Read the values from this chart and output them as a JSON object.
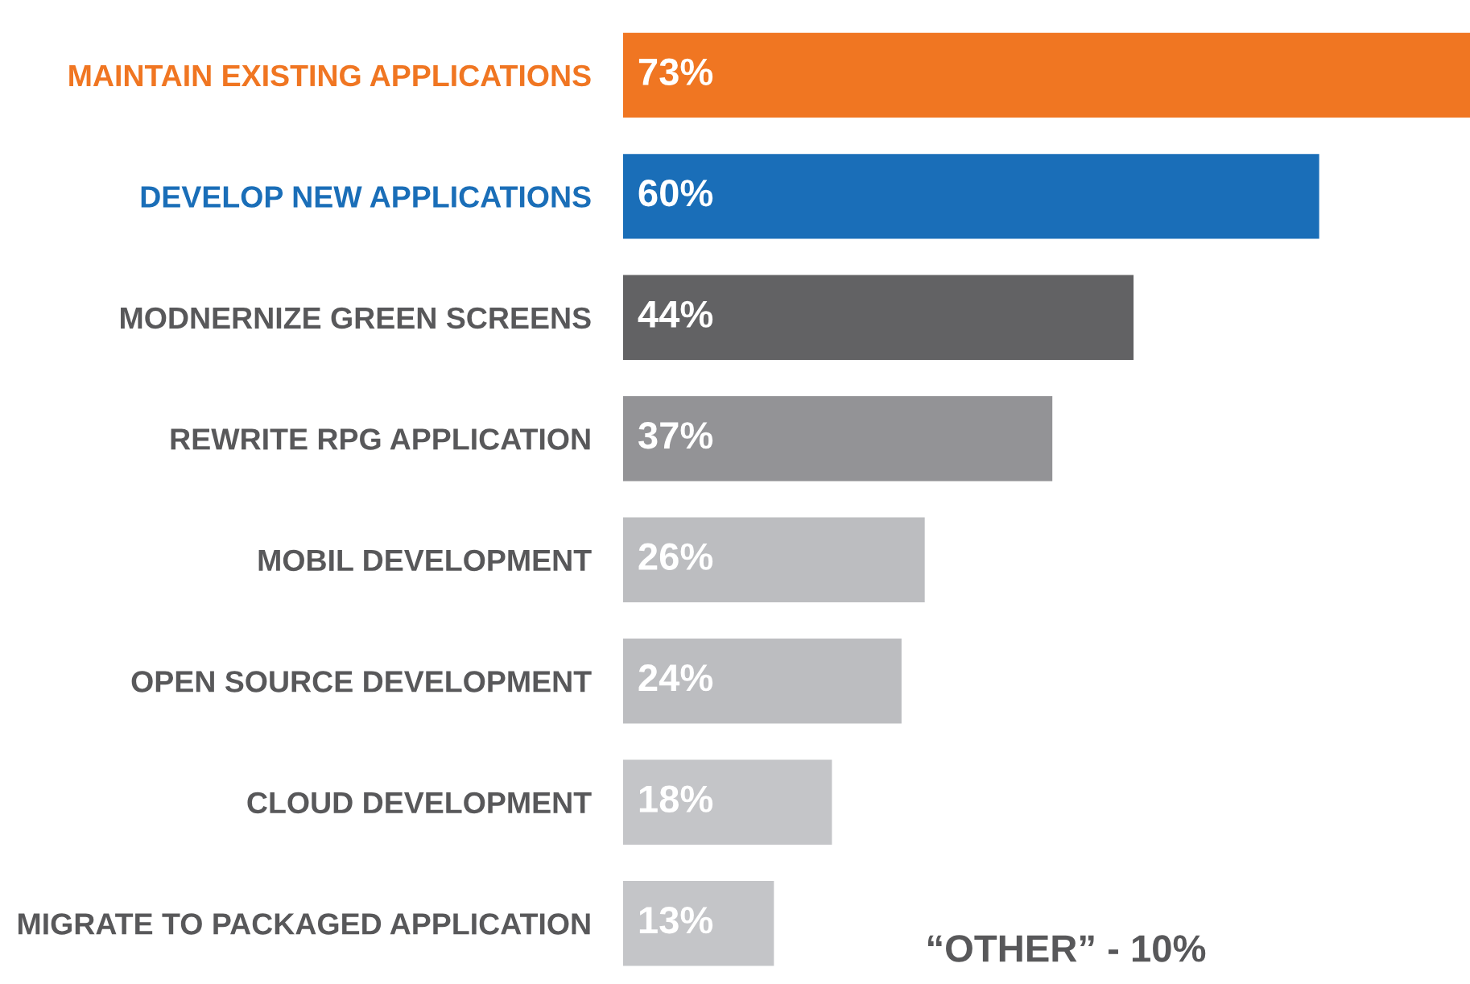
{
  "chart_data": {
    "type": "bar",
    "orientation": "horizontal",
    "categories": [
      "MAINTAIN EXISTING APPLICATIONS",
      "DEVELOP NEW APPLICATIONS",
      "MODNERNIZE GREEN SCREENS",
      "REWRITE RPG APPLICATION",
      "MOBIL DEVELOPMENT",
      "OPEN SOURCE DEVELOPMENT",
      "CLOUD DEVELOPMENT",
      "MIGRATE TO PACKAGED APPLICATION"
    ],
    "values": [
      73,
      60,
      44,
      37,
      26,
      24,
      18,
      13
    ],
    "value_labels": [
      "73%",
      "60%",
      "44%",
      "37%",
      "26%",
      "24%",
      "18%",
      "13%"
    ],
    "colors": [
      "#f07622",
      "#1a6eb8",
      "#626264",
      "#939396",
      "#bcbdc0",
      "#bcbdc0",
      "#c4c5c8",
      "#c4c5c8"
    ],
    "grid": false,
    "legend": false,
    "annotations": [
      "“OTHER” - 10%"
    ]
  }
}
